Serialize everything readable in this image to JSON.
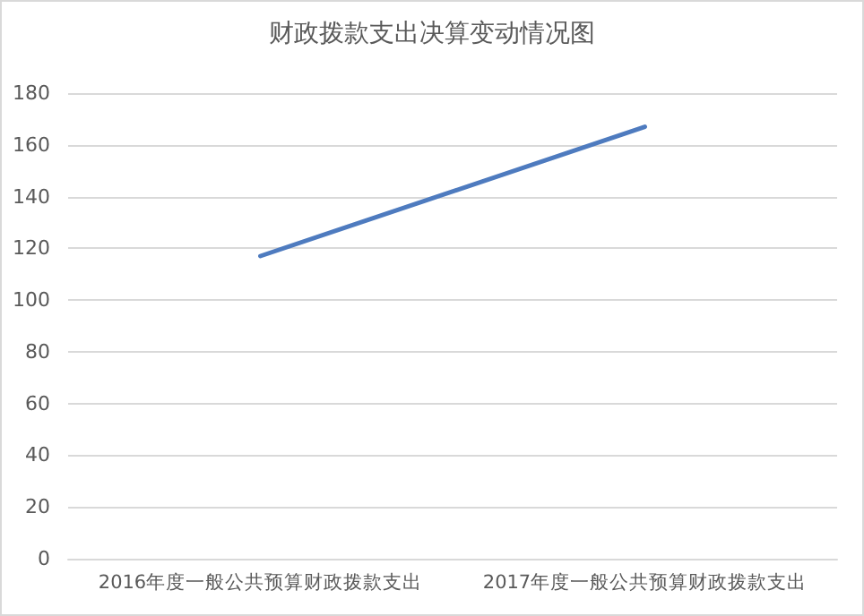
{
  "chart_data": {
    "type": "line",
    "title": "财政拨款支出决算变动情况图",
    "categories": [
      "2016年度一般公共预算财政拨款支出",
      "2017年度一般公共预算财政拨款支出"
    ],
    "series": [
      {
        "color": "#4e7bbf",
        "values": [
          117,
          167
        ]
      }
    ],
    "ylim": [
      0,
      180
    ],
    "yticks": [
      0,
      20,
      40,
      60,
      80,
      100,
      120,
      140,
      160,
      180
    ],
    "grid": "y",
    "marker": "none",
    "line_style": "solid"
  }
}
